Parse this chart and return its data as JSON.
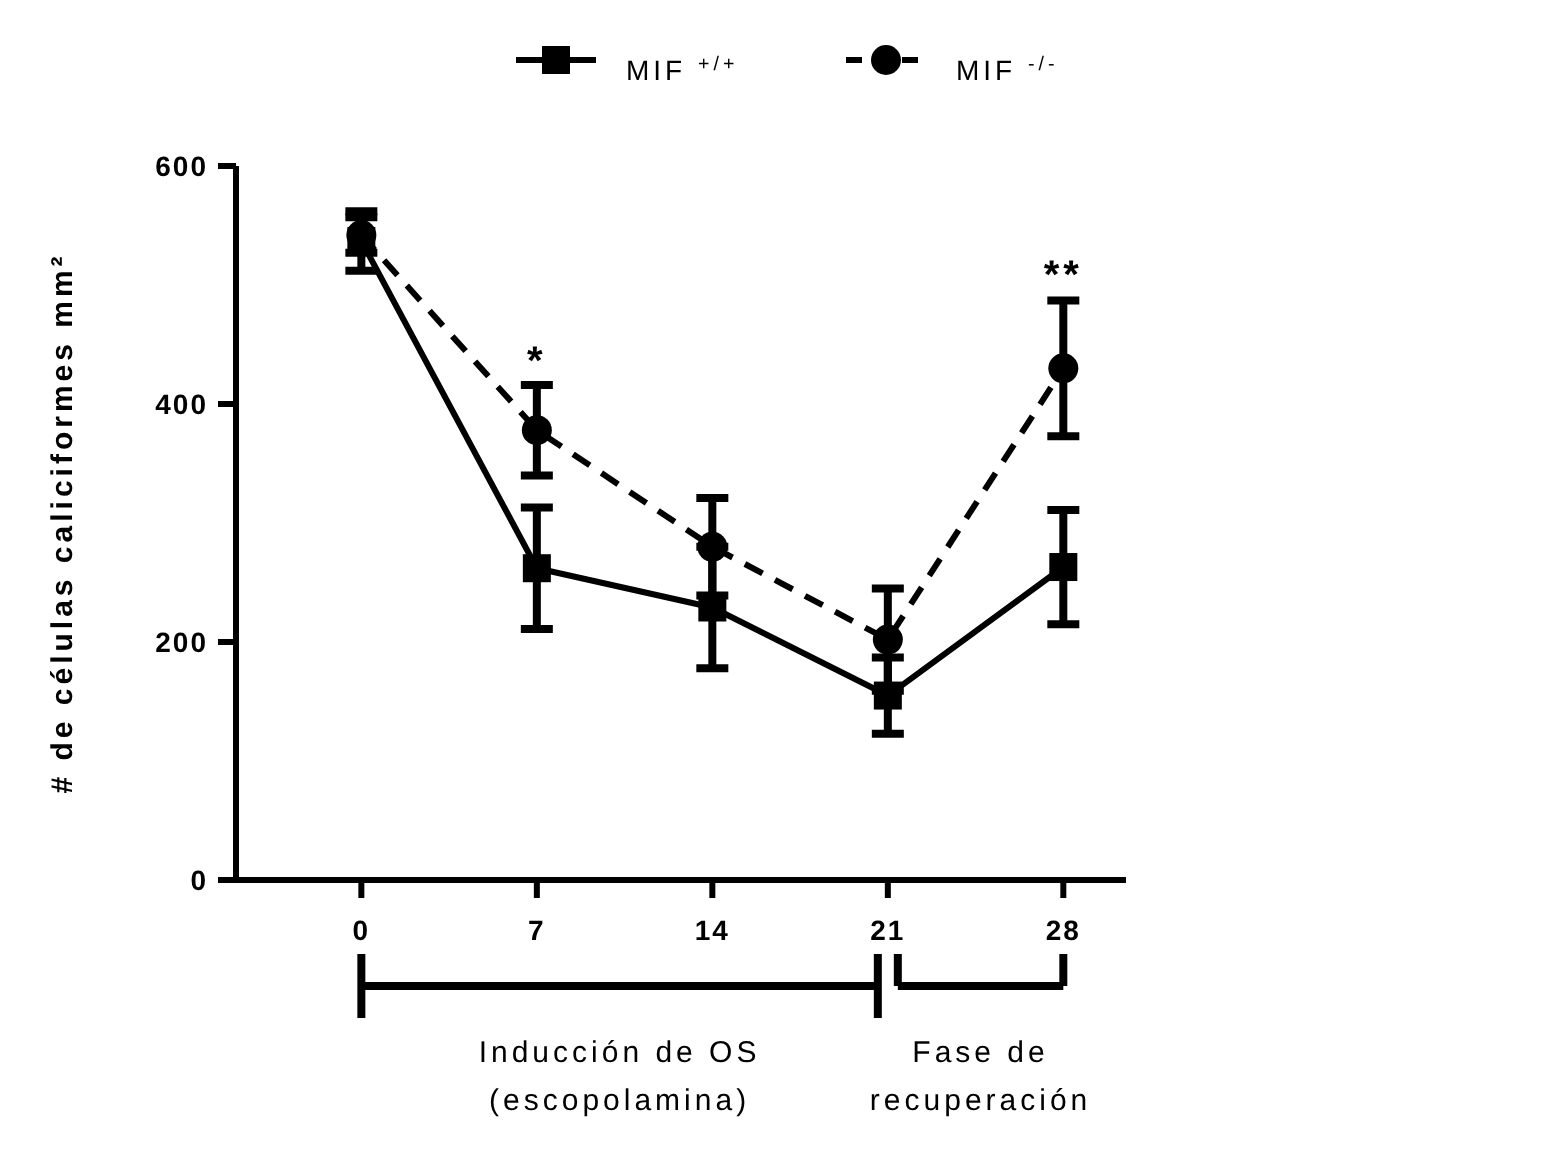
{
  "chart_data": {
    "type": "line",
    "ylabel": "# de células caliciformes mm²",
    "x": [
      0,
      7,
      14,
      21,
      28
    ],
    "xlim": [
      -5,
      30.5
    ],
    "xticks": [
      0,
      7,
      14,
      21,
      28
    ],
    "ylim": [
      0,
      600
    ],
    "yticks": [
      0,
      200,
      400,
      600
    ],
    "legend": "top",
    "grid": false,
    "series": [
      {
        "name": "MIF $^{+/+}$",
        "color": "#000000",
        "marker": "square",
        "line_style": "solid",
        "values": [
          537,
          262,
          229,
          155,
          263
        ],
        "errors": [
          25,
          51,
          51,
          32,
          48
        ]
      },
      {
        "name": "MIF $^{-/-}$",
        "color": "#000000",
        "marker": "circle",
        "line_style": "dashed",
        "values": [
          542,
          378,
          280,
          202,
          430
        ],
        "errors": [
          15,
          38,
          41,
          43,
          57
        ]
      }
    ],
    "annotations": [
      {
        "text": "*",
        "x": 7,
        "y": 415
      },
      {
        "text": "**",
        "x": 28,
        "y": 487
      },
      "Inducción de OS\n(escopolamina)",
      "Fase de\nrecuperación"
    ]
  }
}
